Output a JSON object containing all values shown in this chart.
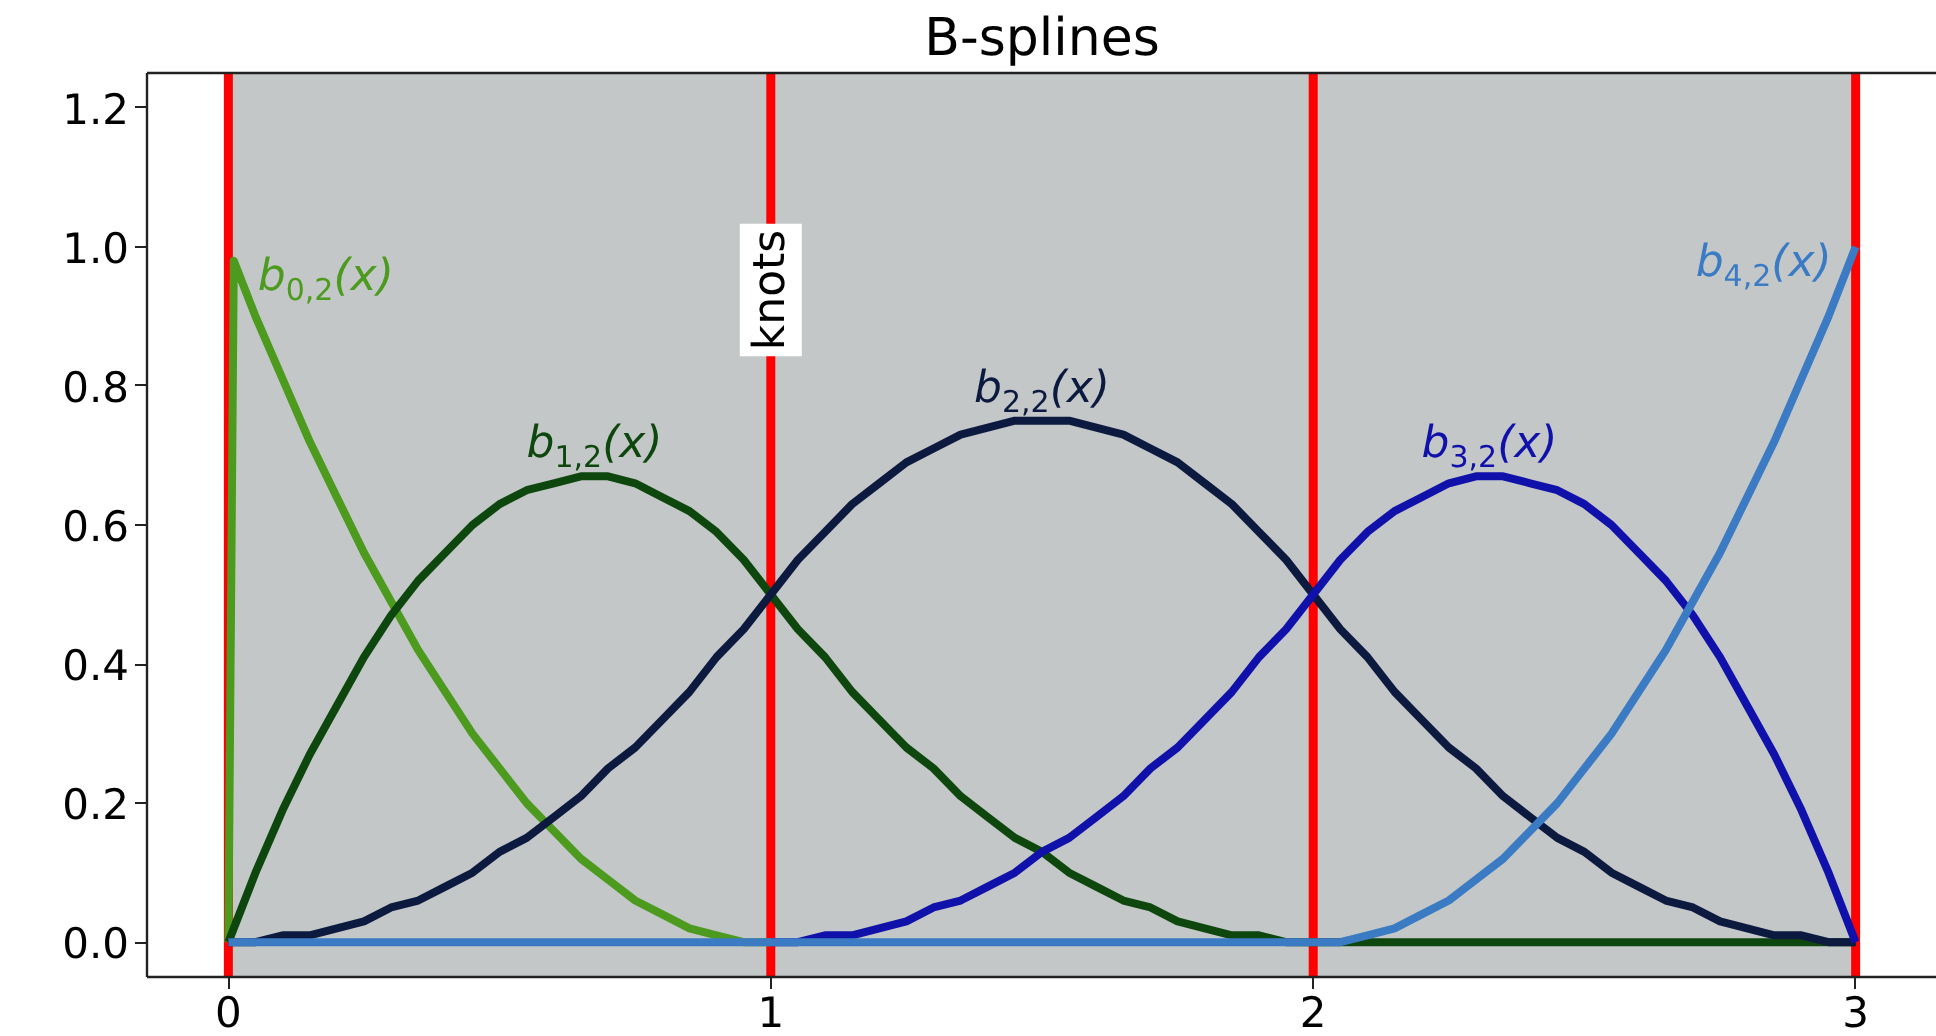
{
  "chart_data": {
    "type": "line",
    "title": "B-splines",
    "line_style": "solid",
    "xlim": [
      -0.15,
      3.15
    ],
    "xticks": [
      0,
      1,
      2,
      3
    ],
    "ylim": [
      -0.05,
      1.25
    ],
    "yticks": [
      {
        "value": 0,
        "label": "0.0"
      },
      0.2,
      0.4,
      0.6,
      0.8,
      {
        "value": 1,
        "label": "1.0"
      },
      1.2
    ],
    "bands": [
      {
        "axis": "x",
        "from": 0,
        "to": 3,
        "color": "#c3c7c7"
      }
    ],
    "ref_lines": [
      {
        "axis": "x",
        "value": 0,
        "color": "#ff0000"
      },
      {
        "axis": "x",
        "value": 1,
        "color": "#ff0000",
        "label": "knots"
      },
      {
        "axis": "x",
        "value": 2,
        "color": "#ff0000"
      },
      {
        "axis": "x",
        "value": 3,
        "color": "#ff0000"
      }
    ],
    "x": [
      0,
      0.05,
      0.1,
      0.15,
      0.2,
      0.25,
      0.3,
      0.35,
      0.4,
      0.45,
      0.5,
      0.55,
      0.6,
      0.65,
      0.7,
      0.75,
      0.8,
      0.85,
      0.9,
      0.95,
      1,
      1.05,
      1.1,
      1.15,
      1.2,
      1.25,
      1.3,
      1.35,
      1.4,
      1.45,
      1.5,
      1.55,
      1.6,
      1.65,
      1.7,
      1.75,
      1.8,
      1.85,
      1.9,
      1.95,
      2,
      2.05,
      2.1,
      2.15,
      2.2,
      2.25,
      2.3,
      2.35,
      2.4,
      2.45,
      2.5,
      2.55,
      2.6,
      2.65,
      2.7,
      2.75,
      2.8,
      2.85,
      2.9,
      2.95,
      3
    ],
    "series": [
      {
        "name": "b$_{0,2}$(x)",
        "color": "#4c9a1e",
        "x": [
          0,
          0.01,
          0.05,
          0.1,
          0.15,
          0.2,
          0.25,
          0.3,
          0.35,
          0.4,
          0.45,
          0.5,
          0.55,
          0.6,
          0.65,
          0.7,
          0.75,
          0.8,
          0.85,
          0.9,
          0.95,
          1
        ],
        "values": [
          0,
          0.98,
          0.9,
          0.81,
          0.72,
          0.64,
          0.56,
          0.49,
          0.42,
          0.36,
          0.3,
          0.25,
          0.2,
          0.16,
          0.12,
          0.09,
          0.06,
          0.04,
          0.02,
          0.01,
          0,
          0
        ]
      },
      {
        "name": "b$_{1,2}$(x)",
        "color": "#0e470e",
        "values": [
          0,
          0.1,
          0.19,
          0.27,
          0.34,
          0.41,
          0.47,
          0.52,
          0.56,
          0.6,
          0.63,
          0.65,
          0.66,
          0.67,
          0.67,
          0.66,
          0.64,
          0.62,
          0.59,
          0.55,
          0.5,
          0.45,
          0.41,
          0.36,
          0.32,
          0.28,
          0.25,
          0.21,
          0.18,
          0.15,
          0.13,
          0.1,
          0.08,
          0.06,
          0.05,
          0.03,
          0.02,
          0.01,
          0.01,
          0,
          0,
          0,
          0,
          0,
          0,
          0,
          0,
          0,
          0,
          0,
          0,
          0,
          0,
          0,
          0,
          0,
          0,
          0,
          0,
          0,
          0
        ]
      },
      {
        "name": "b$_{2,2}$(x)",
        "color": "#0c1a40",
        "values": [
          0,
          0,
          0.01,
          0.01,
          0.02,
          0.03,
          0.05,
          0.06,
          0.08,
          0.1,
          0.13,
          0.15,
          0.18,
          0.21,
          0.25,
          0.28,
          0.32,
          0.36,
          0.41,
          0.45,
          0.5,
          0.55,
          0.59,
          0.63,
          0.66,
          0.69,
          0.71,
          0.73,
          0.74,
          0.75,
          0.75,
          0.75,
          0.74,
          0.73,
          0.71,
          0.69,
          0.66,
          0.63,
          0.59,
          0.55,
          0.5,
          0.45,
          0.41,
          0.36,
          0.32,
          0.28,
          0.25,
          0.21,
          0.18,
          0.15,
          0.13,
          0.1,
          0.08,
          0.06,
          0.05,
          0.03,
          0.02,
          0.01,
          0.01,
          0,
          0
        ]
      },
      {
        "name": "b$_{3,2}$(x)",
        "color": "#1010aa",
        "x": [
          1,
          1.05,
          1.1,
          1.15,
          1.2,
          1.25,
          1.3,
          1.35,
          1.4,
          1.45,
          1.5,
          1.55,
          1.6,
          1.65,
          1.7,
          1.75,
          1.8,
          1.85,
          1.9,
          1.95,
          2,
          2.05,
          2.1,
          2.15,
          2.2,
          2.25,
          2.3,
          2.35,
          2.4,
          2.45,
          2.5,
          2.55,
          2.6,
          2.65,
          2.7,
          2.75,
          2.8,
          2.85,
          2.9,
          2.95,
          3
        ],
        "values": [
          0,
          0,
          0.01,
          0.01,
          0.02,
          0.03,
          0.05,
          0.06,
          0.08,
          0.1,
          0.13,
          0.15,
          0.18,
          0.21,
          0.25,
          0.28,
          0.32,
          0.36,
          0.41,
          0.45,
          0.5,
          0.55,
          0.59,
          0.62,
          0.64,
          0.66,
          0.67,
          0.67,
          0.66,
          0.65,
          0.63,
          0.6,
          0.56,
          0.52,
          0.47,
          0.41,
          0.34,
          0.27,
          0.19,
          0.1,
          0
        ]
      },
      {
        "name": "b$_{4,2}$(x)",
        "color": "#3b7bc4",
        "values": [
          0,
          0,
          0,
          0,
          0,
          0,
          0,
          0,
          0,
          0,
          0,
          0,
          0,
          0,
          0,
          0,
          0,
          0,
          0,
          0,
          0,
          0,
          0,
          0,
          0,
          0,
          0,
          0,
          0,
          0,
          0,
          0,
          0,
          0,
          0,
          0,
          0,
          0,
          0,
          0,
          0,
          0,
          0.01,
          0.02,
          0.04,
          0.06,
          0.09,
          0.12,
          0.16,
          0.2,
          0.25,
          0.3,
          0.36,
          0.42,
          0.49,
          0.56,
          0.64,
          0.72,
          0.81,
          0.9,
          1
        ]
      }
    ]
  }
}
